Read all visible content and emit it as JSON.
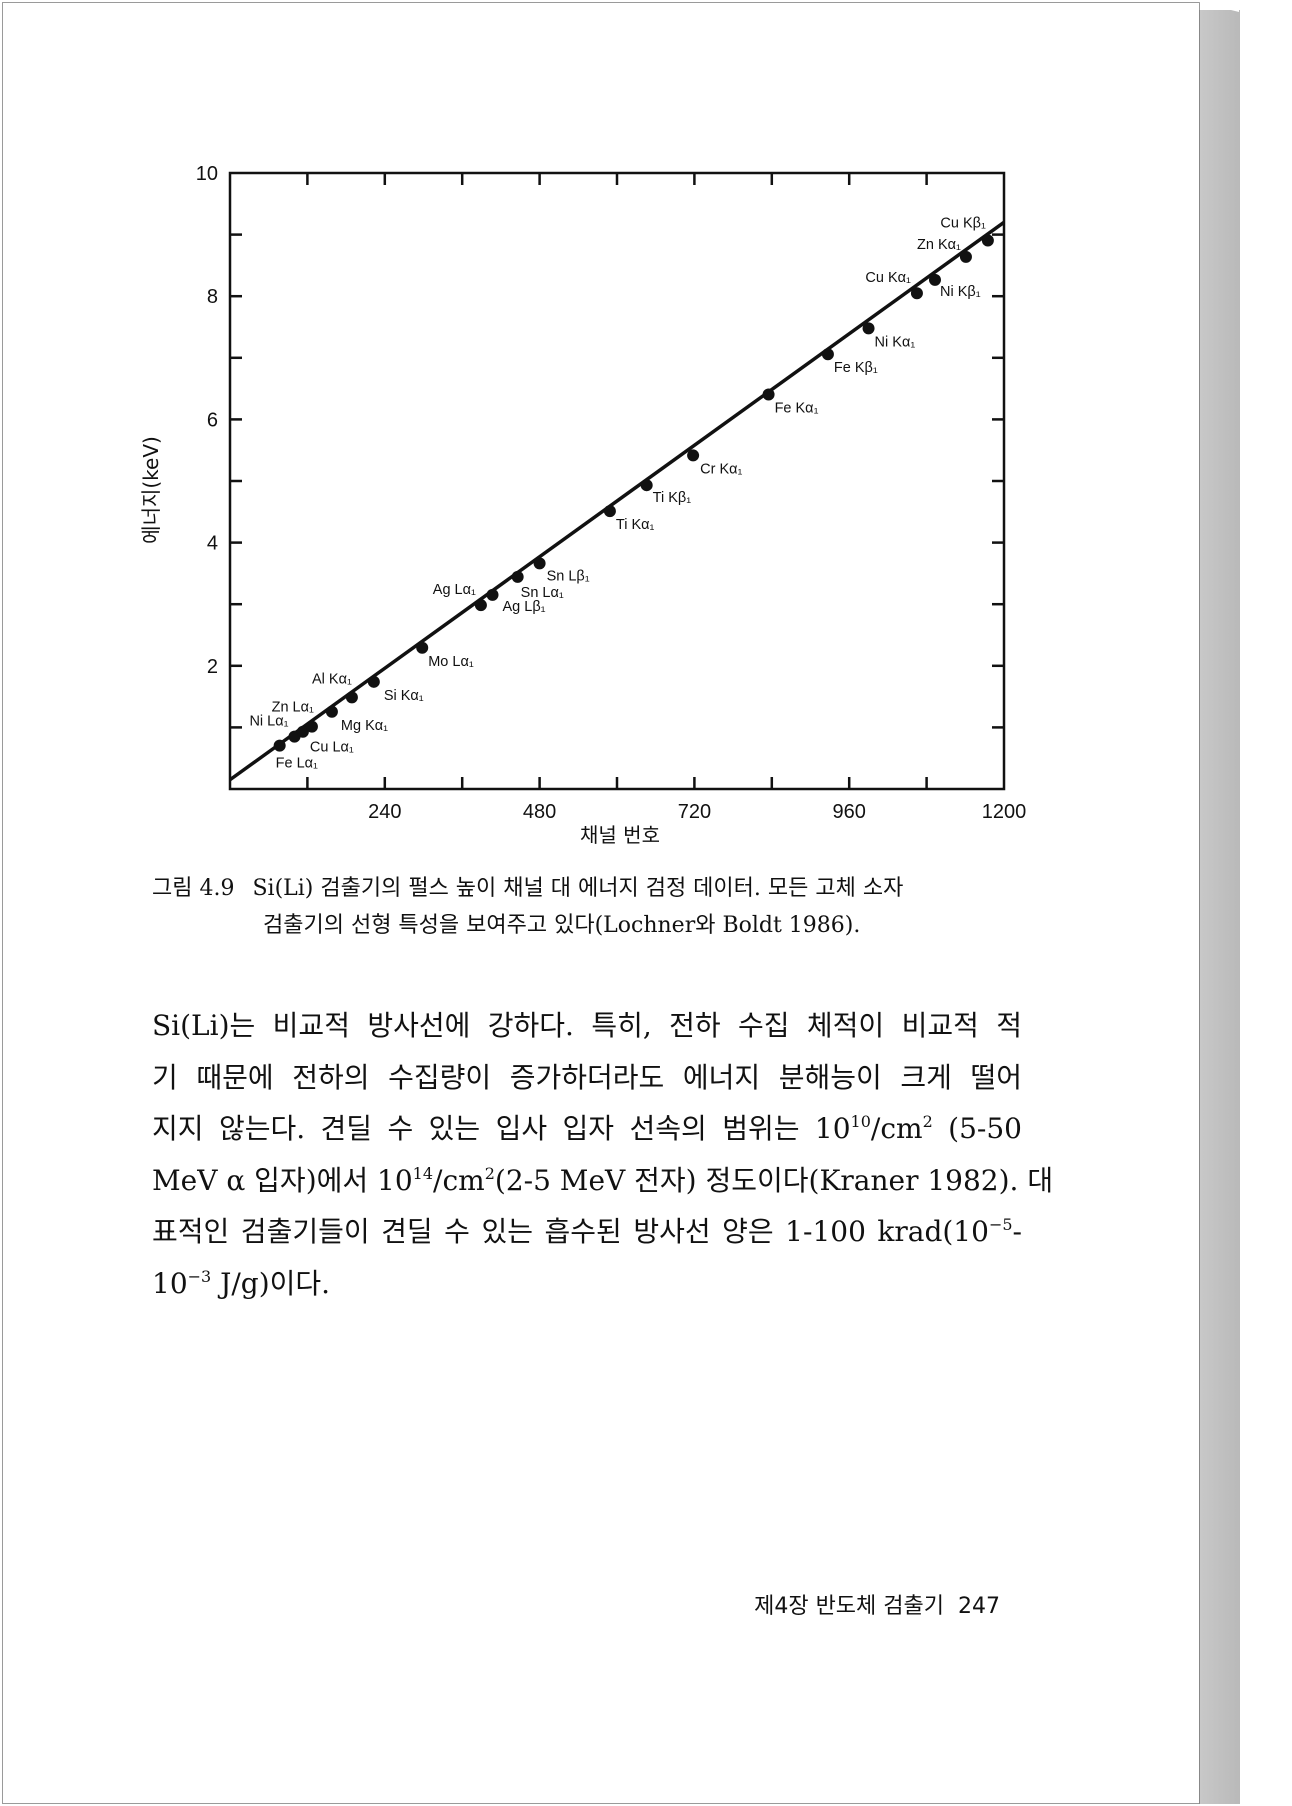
{
  "chart_data": {
    "type": "line",
    "xlabel": "채널 번호",
    "ylabel": "에너지(keV)",
    "xlim": [
      0,
      1200
    ],
    "ylim": [
      0,
      10
    ],
    "x_tick_labels": [
      "240",
      "480",
      "720",
      "960",
      "1200"
    ],
    "y_tick_labels": [
      "2",
      "4",
      "6",
      "8",
      "10"
    ],
    "grid": false,
    "fit_line": {
      "x": [
        0,
        1200
      ],
      "y": [
        0.15,
        9.2
      ]
    },
    "points": [
      {
        "label": "Fe Lα₁",
        "x": 77,
        "y": 0.705
      },
      {
        "label": "Ni Lα₁",
        "x": 100,
        "y": 0.851
      },
      {
        "label": "Cu Lα₁",
        "x": 113,
        "y": 0.93
      },
      {
        "label": "Zn Lα₁",
        "x": 127,
        "y": 1.012
      },
      {
        "label": "Mg Kα₁",
        "x": 158,
        "y": 1.254
      },
      {
        "label": "Al Kα₁",
        "x": 189,
        "y": 1.487
      },
      {
        "label": "Si Kα₁",
        "x": 223,
        "y": 1.74
      },
      {
        "label": "Mo Lα₁",
        "x": 298,
        "y": 2.293
      },
      {
        "label": "Ag Lα₁",
        "x": 389,
        "y": 2.984
      },
      {
        "label": "Ag Lβ₁",
        "x": 407,
        "y": 3.151
      },
      {
        "label": "Sn Lα₁",
        "x": 446,
        "y": 3.444
      },
      {
        "label": "Sn Lβ₁",
        "x": 480,
        "y": 3.663
      },
      {
        "label": "Ti Kα₁",
        "x": 589,
        "y": 4.511
      },
      {
        "label": "Ti Kβ₁",
        "x": 646,
        "y": 4.932
      },
      {
        "label": "Cr Kα₁",
        "x": 718,
        "y": 5.415
      },
      {
        "label": "Fe Kα₁",
        "x": 835,
        "y": 6.404
      },
      {
        "label": "Fe Kβ₁",
        "x": 927,
        "y": 7.058
      },
      {
        "label": "Ni Kα₁",
        "x": 990,
        "y": 7.478
      },
      {
        "label": "Cu Kα₁",
        "x": 1065,
        "y": 8.048
      },
      {
        "label": "Ni Kβ₁",
        "x": 1093,
        "y": 8.265
      },
      {
        "label": "Zn Kα₁",
        "x": 1141,
        "y": 8.639
      },
      {
        "label": "Cu Kβ₁",
        "x": 1175,
        "y": 8.905
      }
    ]
  },
  "caption": {
    "number": "그림 4.9",
    "line1": "Si(Li) 검출기의 펄스 높이 채널 대 에너지 검정 데이터. 모든 고체 소자",
    "line2": "검출기의 선형 특성을 보여주고 있다(Lochner와 Boldt 1986)."
  },
  "body": {
    "lines": [
      [
        {
          "t": "Si(Li)는 비교적 방사선에 강하다. 특히, 전하 수집 체적이 비교적 적"
        }
      ],
      [
        {
          "t": "기 때문에 전하의 수집량이 증가하더라도 에너지 분해능이 크게 떨어"
        }
      ],
      [
        {
          "t": "지지 않는다. 견딜 수 있는 입사 입자 선속의 범위는 10"
        },
        {
          "t": "10",
          "sup": true
        },
        {
          "t": "/cm"
        },
        {
          "t": "2",
          "sup": true
        },
        {
          "t": " (5-50"
        }
      ],
      [
        {
          "t": "MeV α 입자)에서 10"
        },
        {
          "t": "14",
          "sup": true
        },
        {
          "t": "/cm"
        },
        {
          "t": "2",
          "sup": true
        },
        {
          "t": "(2-5 MeV 전자) 정도이다(Kraner 1982). 대"
        }
      ],
      [
        {
          "t": "표적인 검출기들이 견딜 수 있는 흡수된 방사선 양은 1-100 krad(10"
        },
        {
          "t": "−5",
          "sup": true
        },
        {
          "t": "-"
        }
      ],
      [
        {
          "t": "10"
        },
        {
          "t": "−3",
          "sup": true
        },
        {
          "t": " J/g)이다."
        }
      ]
    ]
  },
  "footer": {
    "chapter": "제4장 반도체 검출기",
    "page_number": "247"
  }
}
